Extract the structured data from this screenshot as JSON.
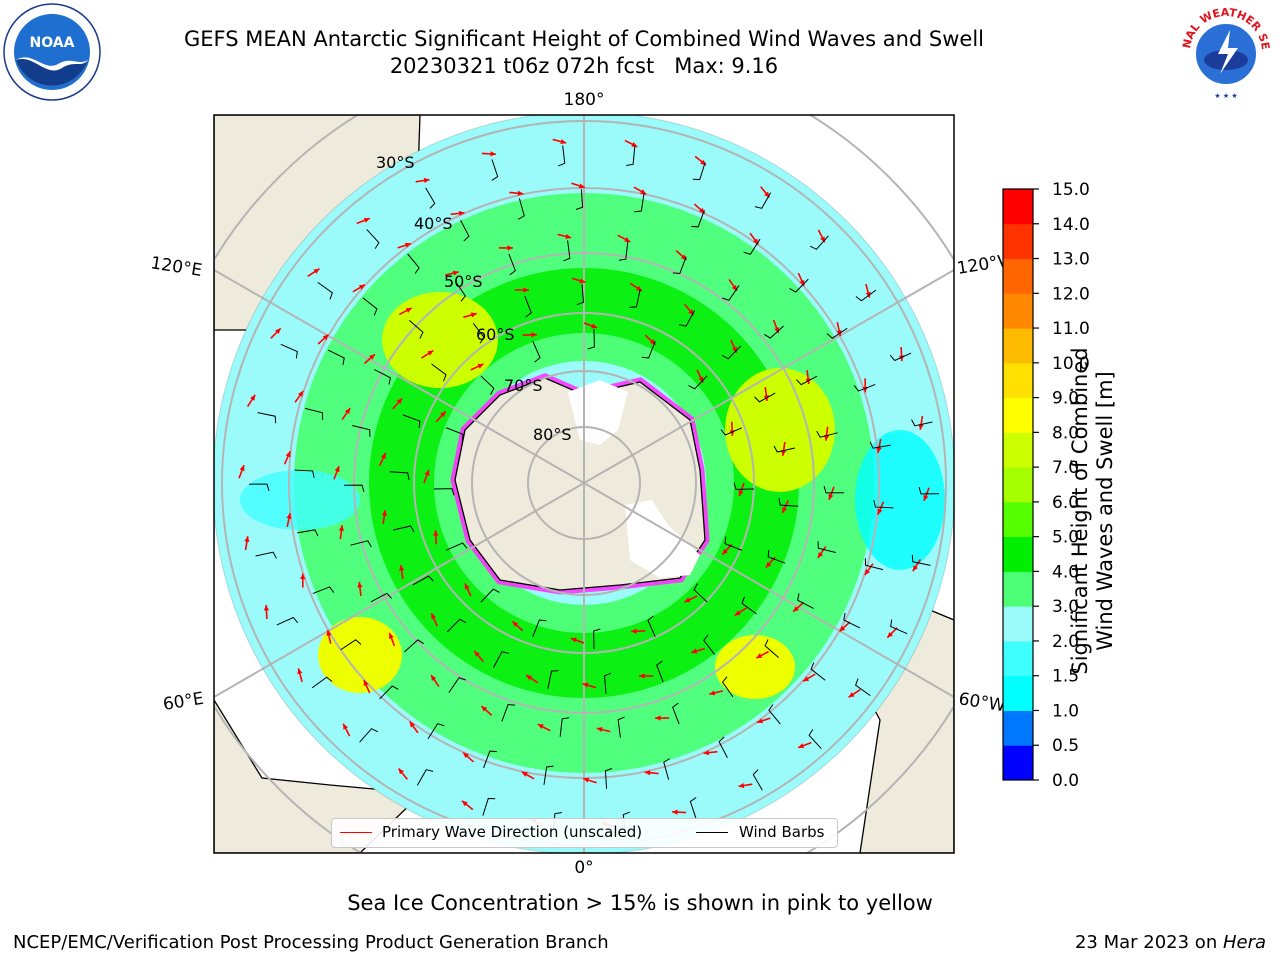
{
  "header": {
    "title_line1": "GEFS MEAN Antarctic Significant Height of Combined Wind Waves and Swell",
    "title_line2": "20230321 t06z 072h fcst   Max: 9.16"
  },
  "logos": {
    "left": "NOAA",
    "right": "NATIONAL WEATHER SERVICE"
  },
  "map": {
    "projection": "south-polar-stereographic",
    "longitude_labels": [
      "180°",
      "120°E",
      "120°W",
      "60°E",
      "60°W",
      "0°"
    ],
    "latitude_labels": [
      "30°S",
      "40°S",
      "50°S",
      "60°S",
      "70°S",
      "80°S"
    ],
    "legend": {
      "wave_direction": "Primary Wave Direction (unscaled)",
      "wind_barbs": "Wind Barbs"
    },
    "colors": {
      "land": "#efebdc",
      "ocean_default": "#9bfbfb",
      "grid": "#b4b4b4",
      "arrow": "#ff0000",
      "sea_ice": "#ff33ff"
    }
  },
  "colorbar": {
    "title_line1": "Significant Height of Combined",
    "title_line2": "Wind Waves and Swell [m]",
    "ticks": [
      "0.0",
      "0.5",
      "1.0",
      "1.5",
      "2.0",
      "3.0",
      "4.0",
      "5.0",
      "6.0",
      "7.0",
      "8.0",
      "9.0",
      "10.0",
      "11.0",
      "12.0",
      "13.0",
      "14.0",
      "15.0"
    ],
    "colors": [
      "#0000ff",
      "#0077ff",
      "#00ffff",
      "#40ffff",
      "#9bfbfb",
      "#4dff77",
      "#00ee00",
      "#55ff00",
      "#a6ff00",
      "#ccff00",
      "#ffff00",
      "#ffe000",
      "#ffbb00",
      "#ff8800",
      "#ff6600",
      "#ff3300",
      "#ff0000"
    ]
  },
  "captions": {
    "sea_ice": "Sea Ice Concentration > 15% is shown in pink to yellow"
  },
  "footer": {
    "left": "NCEP/EMC/Verification Post Processing Product Generation Branch",
    "right_date": "23 Mar 2023 on ",
    "right_host": "Hera"
  }
}
